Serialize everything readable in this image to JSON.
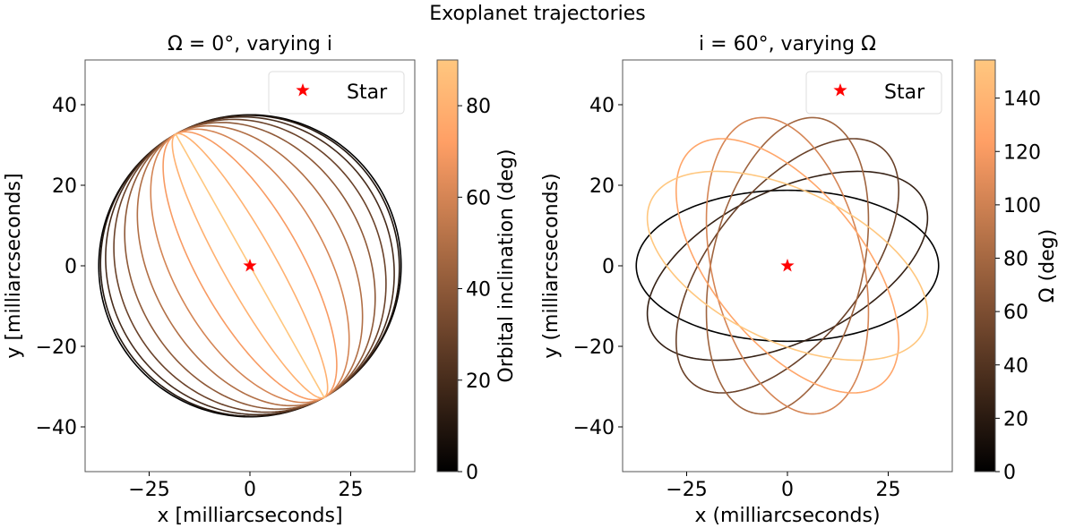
{
  "figure_title": "Exoplanet trajectories",
  "colors": {
    "star": "#ff0000",
    "colormap": "copper"
  },
  "chart_data": [
    {
      "type": "line",
      "title": "Ω = 0°, varying i",
      "xlabel": "x [milliarcseconds]",
      "ylabel": "y [milliarcseconds]",
      "xlim": [
        -41,
        41
      ],
      "ylim": [
        -51,
        51
      ],
      "xticks": [
        -25,
        0,
        25
      ],
      "yticks": [
        -40,
        -20,
        0,
        20,
        40
      ],
      "semi_major_axis": 37.5,
      "Omega_deg": 0,
      "inclinations_deg": [
        0,
        10,
        20,
        30,
        40,
        50,
        60,
        70,
        80,
        90
      ],
      "colorbar": {
        "label": "Orbital inclination (deg)",
        "range": [
          0,
          90
        ],
        "ticks": [
          0,
          20,
          40,
          60,
          80
        ]
      },
      "legend": {
        "label": "Star",
        "placement": "top-right"
      },
      "star": [
        0,
        0
      ]
    },
    {
      "type": "line",
      "title": "i = 60°, varying Ω",
      "xlabel": "x (milliarcseconds)",
      "ylabel": "y (milliarcseconds)",
      "xlim": [
        -41,
        41
      ],
      "ylim": [
        -51,
        51
      ],
      "xticks": [
        -25,
        0,
        25
      ],
      "yticks": [
        -40,
        -20,
        0,
        20,
        40
      ],
      "semi_major_axis": 37.5,
      "inclination_deg": 60,
      "Omegas_deg": [
        0,
        25.7,
        51.4,
        77.1,
        102.9,
        128.6,
        154.3
      ],
      "colorbar": {
        "label": "Ω (deg)",
        "range": [
          0,
          154.3
        ],
        "ticks": [
          0,
          20,
          40,
          60,
          80,
          100,
          120,
          140
        ]
      },
      "legend": {
        "label": "Star",
        "placement": "top-right"
      },
      "star": [
        0,
        0
      ]
    }
  ]
}
